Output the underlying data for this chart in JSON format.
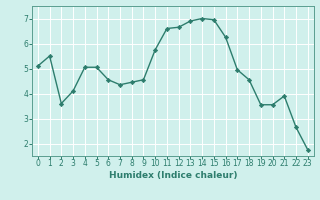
{
  "x": [
    0,
    1,
    2,
    3,
    4,
    5,
    6,
    7,
    8,
    9,
    10,
    11,
    12,
    13,
    14,
    15,
    16,
    17,
    18,
    19,
    20,
    21,
    22,
    23
  ],
  "y": [
    5.1,
    5.5,
    3.6,
    4.1,
    5.05,
    5.05,
    4.55,
    4.35,
    4.45,
    4.55,
    5.75,
    6.6,
    6.65,
    6.9,
    7.0,
    6.95,
    6.25,
    4.95,
    4.55,
    3.55,
    3.55,
    3.9,
    2.65,
    1.75
  ],
  "line_color": "#2d7d6d",
  "marker": "D",
  "marker_size": 2.2,
  "linewidth": 1.0,
  "xlabel": "Humidex (Indice chaleur)",
  "xlim": [
    -0.5,
    23.5
  ],
  "ylim": [
    1.5,
    7.5
  ],
  "yticks": [
    2,
    3,
    4,
    5,
    6,
    7
  ],
  "xticks": [
    0,
    1,
    2,
    3,
    4,
    5,
    6,
    7,
    8,
    9,
    10,
    11,
    12,
    13,
    14,
    15,
    16,
    17,
    18,
    19,
    20,
    21,
    22,
    23
  ],
  "bg_color": "#d0f0ec",
  "grid_color": "#ffffff",
  "tick_color": "#2d7d6d",
  "label_color": "#2d7d6d",
  "xlabel_fontsize": 6.5,
  "tick_fontsize": 5.5,
  "spine_color": "#5a9e90"
}
